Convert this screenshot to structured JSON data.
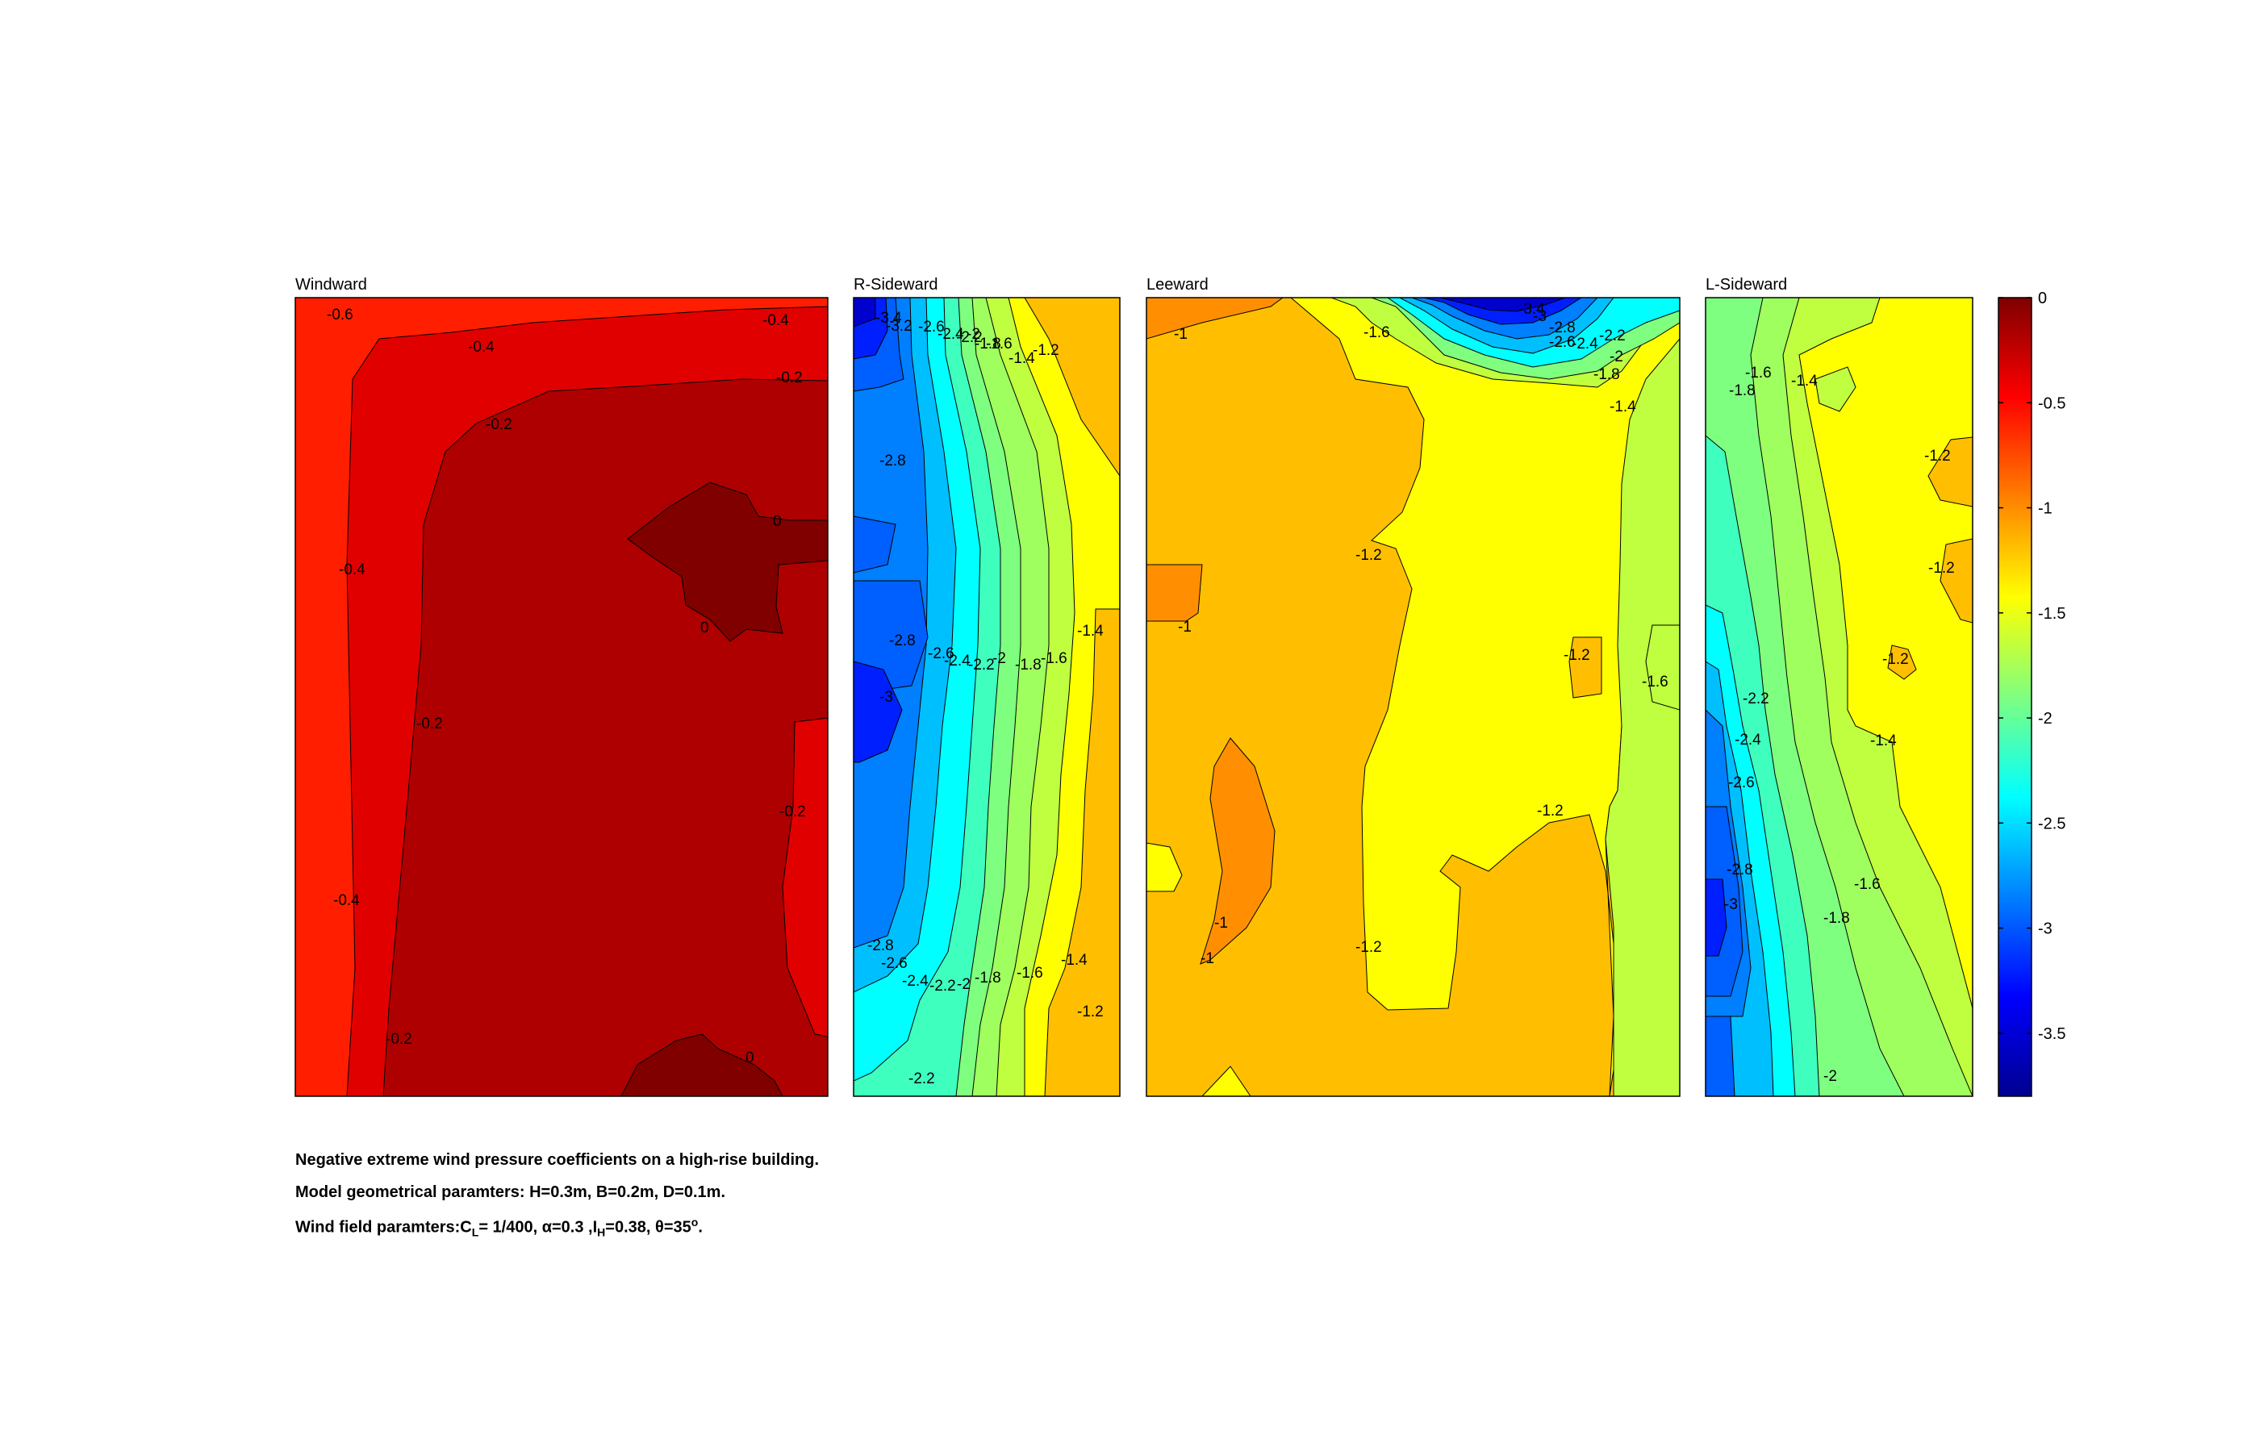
{
  "chart_data": {
    "type": "contour",
    "colormap": "jet",
    "colorbar": {
      "range": [
        -3.8,
        0
      ],
      "ticks": [
        "0",
        "-0.5",
        "-1",
        "-1.5",
        "-2",
        "-2.5",
        "-3",
        "-3.5"
      ],
      "tick_values": [
        0,
        -0.5,
        -1,
        -1.5,
        -2,
        -2.5,
        -3,
        -3.5
      ]
    },
    "panels": [
      {
        "title": "Windward",
        "contour_labels": [
          "-0.6",
          "-0.4",
          "-0.4",
          "-0.2",
          "-0.2",
          "0",
          "-0.4",
          "0",
          "-0.2",
          "-0.2",
          "-0.4",
          "-0.2",
          "0"
        ],
        "value_range": [
          -0.6,
          0
        ]
      },
      {
        "title": "R-Sideward",
        "contour_labels": [
          "-3.4",
          "-3.2",
          "-2.6",
          "-2.4",
          "-2.2",
          "-2",
          "-1.8",
          "-1.6",
          "-1.4",
          "-1.2",
          "-2.8",
          "-2.8",
          "-2.6",
          "-2.4",
          "-2.2",
          "-2",
          "-1.8",
          "-1.6",
          "-1.4",
          "-3",
          "-2.8",
          "-2.6",
          "-2.4",
          "-2.2",
          "-2",
          "-1.8",
          "-1.6",
          "-1.4",
          "-1.2",
          "-2.2"
        ],
        "value_range": [
          -3.4,
          -1.2
        ]
      },
      {
        "title": "Leeward",
        "contour_labels": [
          "-1",
          "-1.6",
          "-3.4",
          "-3",
          "-2.8",
          "-2.6",
          "-2.4",
          "-2.2",
          "-2",
          "-1.8",
          "-1.4",
          "-1.2",
          "-1",
          "-1.2",
          "-1.6",
          "-1.2",
          "-1",
          "-1",
          "-1.2"
        ],
        "value_range": [
          -3.6,
          -1
        ]
      },
      {
        "title": "L-Sideward",
        "contour_labels": [
          "-1.6",
          "-1.8",
          "-1.4",
          "-1.2",
          "-1.2",
          "-1.2",
          "-2.2",
          "-2.4",
          "-1.4",
          "-2.6",
          "-2.8",
          "-3",
          "-1.6",
          "-1.8",
          "-2"
        ],
        "value_range": [
          -3.2,
          -1.2
        ]
      }
    ]
  },
  "caption": {
    "line1": "Negative extreme wind pressure coefficients on a high-rise building.",
    "line2": "Model geometrical paramters: H=0.3m, B=0.2m, D=0.1m.",
    "line3_pre": "Wind field paramters:C",
    "line3_sub1": "L",
    "line3_mid1": "= 1/400, α=0.3 ,I",
    "line3_sub2": "H",
    "line3_mid2": "=0.38, θ=35",
    "line3_sup": "o",
    "line3_end": "."
  }
}
